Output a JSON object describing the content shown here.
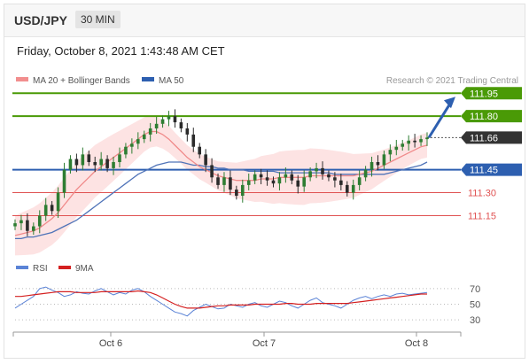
{
  "header": {
    "pair": "USD/JPY",
    "timeframe": "30 MIN"
  },
  "timestamp": "Friday, October 8, 2021 1:43:48 AM CET",
  "legend": {
    "ma20": "MA 20 + Bollinger Bands",
    "ma50": "MA 50",
    "credit": "Research © 2021 Trading Central"
  },
  "rsi_legend": {
    "rsi": "RSI",
    "ma": "9MA"
  },
  "colors": {
    "green": "#4a9a06",
    "blue": "#2d5fb0",
    "red": "#e05252",
    "dark": "#333333"
  },
  "chart_data": {
    "type": "line",
    "price_levels": [
      {
        "value": 111.95,
        "label": "111.95",
        "kind": "resistance",
        "color": "#4a9a06"
      },
      {
        "value": 111.8,
        "label": "111.80",
        "kind": "resistance",
        "color": "#4a9a06"
      },
      {
        "value": 111.66,
        "label": "111.66",
        "kind": "last",
        "color": "#333333"
      },
      {
        "value": 111.45,
        "label": "111.45",
        "kind": "pivot",
        "color": "#2d5fb0"
      },
      {
        "value": 111.3,
        "label": "111.30",
        "kind": "support",
        "color": "#e05252"
      },
      {
        "value": 111.15,
        "label": "111.15",
        "kind": "support",
        "color": "#e05252"
      }
    ],
    "price": [
      111.1,
      111.12,
      111.05,
      111.08,
      111.15,
      111.22,
      111.18,
      111.3,
      111.45,
      111.52,
      111.48,
      111.55,
      111.5,
      111.48,
      111.52,
      111.46,
      111.5,
      111.55,
      111.6,
      111.62,
      111.65,
      111.68,
      111.72,
      111.75,
      111.78,
      111.8,
      111.76,
      111.72,
      111.68,
      111.6,
      111.55,
      111.48,
      111.4,
      111.35,
      111.4,
      111.32,
      111.28,
      111.35,
      111.38,
      111.42,
      111.4,
      111.38,
      111.36,
      111.4,
      111.42,
      111.38,
      111.34,
      111.4,
      111.44,
      111.46,
      111.42,
      111.4,
      111.38,
      111.35,
      111.3,
      111.35,
      111.4,
      111.45,
      111.5,
      111.48,
      111.55,
      111.58,
      111.6,
      111.62,
      111.64,
      111.63,
      111.65,
      111.66
    ],
    "ma20": [
      111.02,
      111.03,
      111.04,
      111.05,
      111.07,
      111.1,
      111.13,
      111.17,
      111.22,
      111.27,
      111.32,
      111.36,
      111.4,
      111.44,
      111.47,
      111.5,
      111.53,
      111.56,
      111.59,
      111.62,
      111.65,
      111.68,
      111.7,
      111.7,
      111.68,
      111.65,
      111.61,
      111.57,
      111.53,
      111.5,
      111.47,
      111.45,
      111.43,
      111.41,
      111.4,
      111.39,
      111.38,
      111.38,
      111.38,
      111.38,
      111.39,
      111.39,
      111.39,
      111.4,
      111.4,
      111.4,
      111.4,
      111.4,
      111.41,
      111.41,
      111.41,
      111.41,
      111.41,
      111.41,
      111.41,
      111.41,
      111.42,
      111.43,
      111.44,
      111.46,
      111.48,
      111.5,
      111.52,
      111.54,
      111.56,
      111.58,
      111.6,
      111.61
    ],
    "ma50": [
      111.0,
      111.0,
      111.01,
      111.01,
      111.02,
      111.03,
      111.04,
      111.06,
      111.08,
      111.1,
      111.12,
      111.15,
      111.18,
      111.21,
      111.24,
      111.27,
      111.3,
      111.33,
      111.36,
      111.39,
      111.42,
      111.44,
      111.46,
      111.48,
      111.49,
      111.5,
      111.5,
      111.5,
      111.49,
      111.48,
      111.48,
      111.47,
      111.47,
      111.46,
      111.46,
      111.45,
      111.45,
      111.45,
      111.44,
      111.44,
      111.44,
      111.44,
      111.44,
      111.43,
      111.43,
      111.43,
      111.43,
      111.43,
      111.43,
      111.43,
      111.43,
      111.43,
      111.42,
      111.42,
      111.42,
      111.42,
      111.42,
      111.42,
      111.42,
      111.42,
      111.42,
      111.43,
      111.44,
      111.45,
      111.46,
      111.47,
      111.48,
      111.5
    ],
    "rsi": [
      45,
      50,
      55,
      60,
      70,
      72,
      68,
      65,
      60,
      62,
      66,
      64,
      63,
      67,
      70,
      66,
      62,
      65,
      63,
      68,
      70,
      66,
      60,
      55,
      50,
      45,
      40,
      38,
      35,
      42,
      46,
      50,
      47,
      44,
      45,
      50,
      48,
      46,
      50,
      52,
      48,
      46,
      50,
      54,
      52,
      48,
      45,
      50,
      55,
      58,
      52,
      50,
      48,
      45,
      50,
      55,
      58,
      60,
      57,
      60,
      62,
      60,
      63,
      64,
      62,
      63,
      64,
      65
    ],
    "rsi_ma": [
      60,
      60,
      61,
      62,
      63,
      64,
      65,
      66,
      66,
      66,
      65,
      65,
      65,
      65,
      66,
      66,
      66,
      66,
      66,
      66,
      67,
      66,
      65,
      62,
      58,
      54,
      50,
      47,
      45,
      45,
      45,
      46,
      47,
      48,
      48,
      49,
      49,
      49,
      49,
      50,
      50,
      50,
      50,
      50,
      51,
      51,
      50,
      50,
      50,
      51,
      51,
      51,
      51,
      51,
      51,
      52,
      53,
      54,
      55,
      56,
      57,
      58,
      59,
      60,
      61,
      62,
      63,
      63
    ],
    "price_ylim": [
      110.95,
      112.05
    ],
    "rsi_levels": [
      "70",
      "50",
      "30"
    ],
    "x_ticks": [
      "Oct 6",
      "Oct 7",
      "Oct 8"
    ]
  }
}
